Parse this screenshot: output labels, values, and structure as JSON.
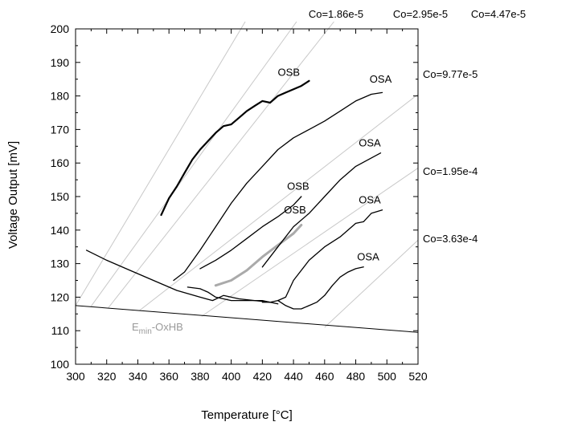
{
  "chart_data": {
    "type": "line",
    "title": "",
    "xlabel": "Temperature [°C]",
    "ylabel": "Voltage Output [mV]",
    "xlim": [
      300,
      520
    ],
    "ylim": [
      100,
      200
    ],
    "xticks": [
      300,
      320,
      340,
      360,
      380,
      400,
      420,
      440,
      460,
      480,
      500,
      520
    ],
    "yticks": [
      100,
      110,
      120,
      130,
      140,
      150,
      160,
      170,
      180,
      190,
      200
    ],
    "grid": false,
    "legend": "none",
    "iso_lines": [
      {
        "label": "Co=1.86e-5",
        "points": [
          [
            300,
            117.5
          ],
          [
            409,
            202
          ]
        ]
      },
      {
        "label": "Co=2.95e-5",
        "points": [
          [
            310,
            117.3
          ],
          [
            442,
            202
          ]
        ]
      },
      {
        "label": "Co=4.47e-5",
        "points": [
          [
            321,
            116.8
          ],
          [
            466,
            202
          ]
        ]
      },
      {
        "label": "Co=9.77e-5",
        "points": [
          [
            341,
            116.0
          ],
          [
            520,
            180.5
          ]
        ]
      },
      {
        "label": "Co=1.95e-4",
        "points": [
          [
            381,
            114.3
          ],
          [
            520,
            158.5
          ]
        ]
      },
      {
        "label": "Co=3.63e-4",
        "points": [
          [
            460,
            111.0
          ],
          [
            520,
            137.0
          ]
        ]
      }
    ],
    "emin_line": {
      "label": "E",
      "label_sub": "min",
      "label_tail": "-OxHB",
      "points": [
        [
          300,
          117.5
        ],
        [
          520,
          109.5
        ]
      ]
    },
    "series": [
      {
        "name": "OSB",
        "color": "#000000",
        "x": [
          355,
          360,
          365,
          370,
          375,
          380,
          385,
          390,
          395,
          400,
          405,
          410,
          415,
          420,
          425,
          430,
          435,
          440,
          445,
          450
        ],
        "y": [
          144.5,
          149.5,
          153,
          157,
          161,
          164,
          166.5,
          169,
          171,
          171.5,
          173.5,
          175.5,
          177,
          178.5,
          178,
          180,
          181,
          182,
          183,
          184.5
        ]
      },
      {
        "name": "OSA",
        "color": "#000000",
        "x": [
          363,
          370,
          380,
          390,
          400,
          410,
          420,
          430,
          440,
          450,
          460,
          470,
          480,
          490,
          497
        ],
        "y": [
          125,
          127.5,
          134,
          141,
          148,
          154,
          159,
          164,
          167.5,
          170,
          172.5,
          175.5,
          178.5,
          180.5,
          181
        ]
      },
      {
        "name": "OSB",
        "color": "#000000",
        "x": [
          380,
          390,
          400,
          410,
          420,
          430,
          440,
          445
        ],
        "y": [
          128.5,
          131,
          134,
          137.5,
          141,
          144,
          147.5,
          150
        ]
      },
      {
        "name": "OSB",
        "color": "#aaaaaa",
        "x": [
          390,
          400,
          410,
          420,
          430,
          440,
          445
        ],
        "y": [
          123.5,
          125,
          128,
          132,
          135.5,
          139,
          141.5
        ]
      },
      {
        "name": "OSA",
        "color": "#000000",
        "x": [
          420,
          430,
          440,
          450,
          460,
          470,
          480,
          490,
          496
        ],
        "y": [
          129,
          135,
          141,
          145,
          150,
          155,
          159,
          161.5,
          163
        ]
      },
      {
        "name": "",
        "color": "#000000",
        "x": [
          307,
          320,
          335,
          350,
          365,
          380,
          388,
          395,
          405,
          415,
          425,
          430
        ],
        "y": [
          134,
          131,
          128,
          125,
          122,
          120,
          119,
          120.5,
          119.5,
          119,
          118.5,
          118
        ]
      },
      {
        "name": "",
        "color": "#000000",
        "x": [
          372,
          380,
          385,
          390,
          395,
          400,
          410,
          420,
          425
        ],
        "y": [
          123,
          122.5,
          121.5,
          120,
          119.5,
          119,
          119,
          119,
          118.5
        ]
      },
      {
        "name": "OSA",
        "color": "#000000",
        "x": [
          420,
          425,
          430,
          435,
          440,
          450,
          460,
          470,
          480,
          485,
          490,
          497
        ],
        "y": [
          118.5,
          118.5,
          119,
          120,
          125,
          131,
          135,
          138,
          142,
          142.5,
          145,
          146
        ]
      },
      {
        "name": "OSA",
        "color": "#000000",
        "x": [
          430,
          435,
          440,
          445,
          450,
          455,
          460,
          465,
          470,
          475,
          480,
          485
        ],
        "y": [
          119,
          117.5,
          116.5,
          116.5,
          117.5,
          118.5,
          120.5,
          123.5,
          126,
          127.5,
          128.5,
          129
        ]
      }
    ],
    "annotations": [
      {
        "text": "OSB",
        "x": 437,
        "y": 186
      },
      {
        "text": "OSA",
        "x": 496,
        "y": 184
      },
      {
        "text": "OSA",
        "x": 489,
        "y": 165
      },
      {
        "text": "OSB",
        "x": 443,
        "y": 152
      },
      {
        "text": "OSB",
        "x": 441,
        "y": 145
      },
      {
        "text": "OSA",
        "x": 489,
        "y": 148
      },
      {
        "text": "OSA",
        "x": 488,
        "y": 131
      }
    ]
  }
}
